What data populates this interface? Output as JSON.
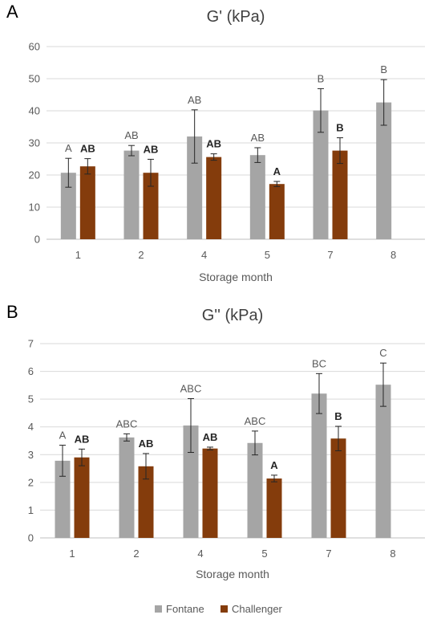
{
  "chart_data": [
    {
      "type": "bar",
      "panel": "A",
      "title": "G' (kPa)",
      "xlabel": "Storage month",
      "ylabel": "",
      "categories": [
        "1",
        "2",
        "4",
        "5",
        "7",
        "8"
      ],
      "ylim": [
        0,
        60
      ],
      "yticks": [
        0,
        10,
        20,
        30,
        40,
        50,
        60
      ],
      "grid": true,
      "series": [
        {
          "name": "Fontane",
          "color": "#a5a5a5",
          "values": [
            20.7,
            27.6,
            32.0,
            26.2,
            40.1,
            42.6
          ],
          "errors": [
            4.5,
            1.6,
            8.3,
            2.3,
            6.8,
            7.1
          ],
          "labels": [
            "A",
            "AB",
            "AB",
            "AB",
            "B",
            "B"
          ],
          "label_bold": false
        },
        {
          "name": "Challenger",
          "color": "#843c0c",
          "values": [
            22.7,
            20.7,
            25.6,
            17.2,
            27.6,
            null
          ],
          "errors": [
            2.4,
            4.2,
            1.0,
            0.8,
            4.0,
            null
          ],
          "labels": [
            "AB",
            "AB",
            "AB",
            "A",
            "B",
            ""
          ],
          "label_bold": true
        }
      ]
    },
    {
      "type": "bar",
      "panel": "B",
      "title": "G'' (kPa)",
      "xlabel": "Storage month",
      "ylabel": "",
      "categories": [
        "1",
        "2",
        "4",
        "5",
        "7",
        "8"
      ],
      "ylim": [
        0,
        7
      ],
      "yticks": [
        0,
        1,
        2,
        3,
        4,
        5,
        6,
        7
      ],
      "grid": true,
      "series": [
        {
          "name": "Fontane",
          "color": "#a5a5a5",
          "values": [
            2.78,
            3.62,
            4.05,
            3.42,
            5.2,
            5.52
          ],
          "errors": [
            0.56,
            0.13,
            0.97,
            0.43,
            0.72,
            0.78
          ],
          "labels": [
            "A",
            "ABC",
            "ABC",
            "ABC",
            "BC",
            "C"
          ],
          "label_bold": false
        },
        {
          "name": "Challenger",
          "color": "#843c0c",
          "values": [
            2.9,
            2.58,
            3.22,
            2.14,
            3.58,
            null
          ],
          "errors": [
            0.3,
            0.46,
            0.05,
            0.12,
            0.44,
            null
          ],
          "labels": [
            "AB",
            "AB",
            "AB",
            "A",
            "B",
            ""
          ],
          "label_bold": true
        }
      ]
    }
  ],
  "legend": {
    "placement": "bottom",
    "items": [
      {
        "name": "Fontane",
        "color": "#a5a5a5"
      },
      {
        "name": "Challenger",
        "color": "#843c0c"
      }
    ]
  }
}
